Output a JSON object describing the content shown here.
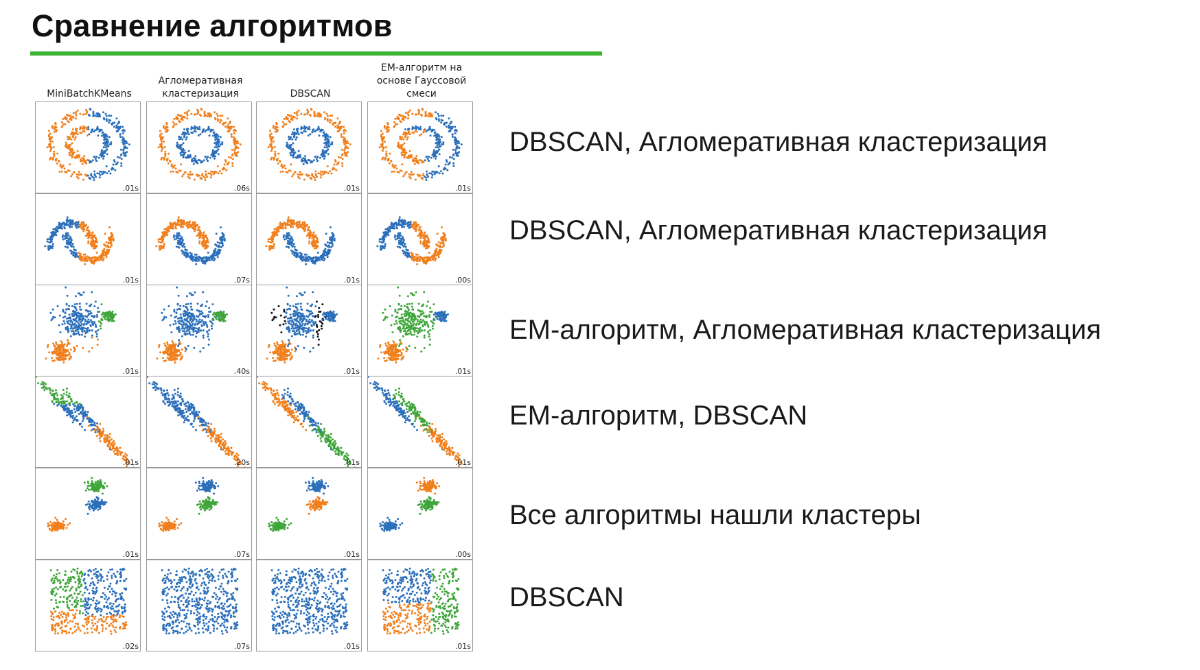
{
  "slide": {
    "title": "Сравнение алгоритмов"
  },
  "colors": {
    "accent_rule": "#3cb532",
    "blue": "#2b6fba",
    "orange": "#f07f1c",
    "green": "#3ea53a",
    "noise": "#111111"
  },
  "columns": [
    {
      "label": "MiniBatchKMeans"
    },
    {
      "label": "Агломеративная кластеризация"
    },
    {
      "label": "DBSCAN"
    },
    {
      "label": "EM-алгоритм на основе Гауссовой смеси"
    }
  ],
  "rows": [
    {
      "dataset": "circles",
      "result": "DBSCAN, Агломеративная кластеризация",
      "times": [
        ".01s",
        ".06s",
        ".01s",
        ".01s"
      ]
    },
    {
      "dataset": "moons",
      "result": "DBSCAN, Агломеративная кластеризация",
      "times": [
        ".01s",
        ".07s",
        ".01s",
        ".00s"
      ]
    },
    {
      "dataset": "varied",
      "result": "EM-алгоритм, Агломеративная кластеризация",
      "times": [
        ".01s",
        ".40s",
        ".01s",
        ".01s"
      ]
    },
    {
      "dataset": "aniso",
      "result": "EM-алгоритм, DBSCAN",
      "times": [
        ".01s",
        ".20s",
        ".01s",
        ".01s"
      ]
    },
    {
      "dataset": "blobs",
      "result": "Все алгоритмы нашли кластеры",
      "times": [
        ".01s",
        ".07s",
        ".01s",
        ".00s"
      ]
    },
    {
      "dataset": "no_structure",
      "result": "DBSCAN",
      "times": [
        ".02s",
        ".07s",
        ".01s",
        ".01s"
      ]
    }
  ]
}
